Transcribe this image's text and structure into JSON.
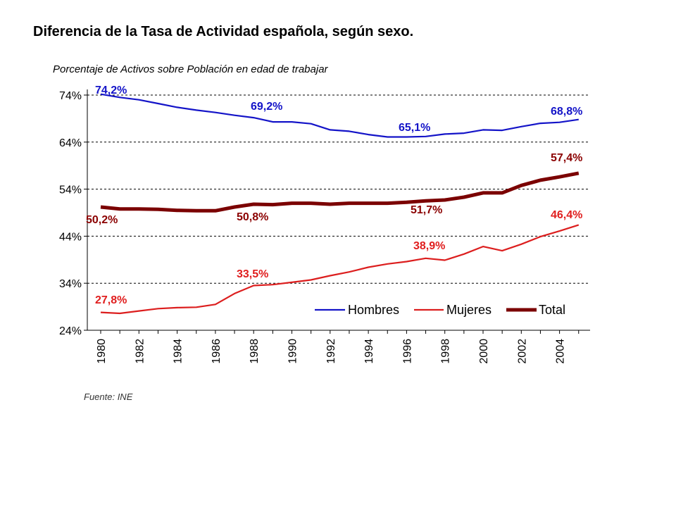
{
  "page": {
    "title": "Diferencia de la Tasa de Actividad española, según sexo.",
    "source": "Fuente: INE"
  },
  "chart_data": {
    "type": "line",
    "title": "",
    "subtitle": "Porcentaje de Activos sobre Población en edad de trabajar",
    "xlabel": "",
    "ylabel": "",
    "ylim": [
      24,
      74
    ],
    "yticks": [
      24,
      34,
      44,
      54,
      64,
      74
    ],
    "ytick_labels": [
      "24%",
      "34%",
      "44%",
      "54%",
      "64%",
      "74%"
    ],
    "xlim": [
      1980,
      2005
    ],
    "xticks": [
      1980,
      1982,
      1984,
      1986,
      1988,
      1990,
      1992,
      1994,
      1996,
      1998,
      2000,
      2002,
      2004
    ],
    "xtick_labels": [
      "1980",
      "1982",
      "1984",
      "1986",
      "1988",
      "1990",
      "1992",
      "1994",
      "1996",
      "1998",
      "2000",
      "2002",
      "2004"
    ],
    "grid": "horizontal dashed",
    "legend_position": "bottom-right inside plot",
    "x": [
      1980,
      1981,
      1982,
      1983,
      1984,
      1985,
      1986,
      1987,
      1988,
      1989,
      1990,
      1991,
      1992,
      1993,
      1994,
      1995,
      1996,
      1997,
      1998,
      1999,
      2000,
      2001,
      2002,
      2003,
      2004,
      2005
    ],
    "series": [
      {
        "name": "Hombres",
        "color": "#1414C8",
        "values": [
          74.2,
          73.5,
          73.0,
          72.2,
          71.4,
          70.8,
          70.3,
          69.7,
          69.2,
          68.3,
          68.3,
          67.9,
          66.6,
          66.3,
          65.6,
          65.1,
          65.1,
          65.2,
          65.7,
          65.9,
          66.6,
          66.5,
          67.3,
          68.0,
          68.2,
          68.8
        ]
      },
      {
        "name": "Mujeres",
        "color": "#DC1E1E",
        "values": [
          27.8,
          27.6,
          28.1,
          28.6,
          28.8,
          28.9,
          29.5,
          31.8,
          33.5,
          33.7,
          34.2,
          34.7,
          35.6,
          36.4,
          37.4,
          38.1,
          38.6,
          39.3,
          38.9,
          40.2,
          41.8,
          40.9,
          42.3,
          43.9,
          45.1,
          46.4
        ]
      },
      {
        "name": "Total",
        "color": "#7B0000",
        "values": [
          50.2,
          49.8,
          49.8,
          49.7,
          49.5,
          49.4,
          49.4,
          50.2,
          50.8,
          50.7,
          51.0,
          51.0,
          50.8,
          51.0,
          51.0,
          51.0,
          51.2,
          51.5,
          51.7,
          52.3,
          53.2,
          53.2,
          54.8,
          55.9,
          56.6,
          57.4
        ]
      }
    ],
    "data_labels": [
      {
        "series": "Hombres",
        "x": 1980,
        "text": "74,2%"
      },
      {
        "series": "Hombres",
        "x": 1988,
        "text": "69,2%"
      },
      {
        "series": "Hombres",
        "x": 1995,
        "text": "65,1%"
      },
      {
        "series": "Hombres",
        "x": 2005,
        "text": "68,8%"
      },
      {
        "series": "Total",
        "x": 1980,
        "text": "50,2%"
      },
      {
        "series": "Total",
        "x": 1988,
        "text": "50,8%"
      },
      {
        "series": "Total",
        "x": 1998,
        "text": "51,7%"
      },
      {
        "series": "Total",
        "x": 2005,
        "text": "57,4%"
      },
      {
        "series": "Mujeres",
        "x": 1980,
        "text": "27,8%"
      },
      {
        "series": "Mujeres",
        "x": 1988,
        "text": "33,5%"
      },
      {
        "series": "Mujeres",
        "x": 1998,
        "text": "38,9%"
      },
      {
        "series": "Mujeres",
        "x": 2005,
        "text": "46,4%"
      }
    ]
  }
}
